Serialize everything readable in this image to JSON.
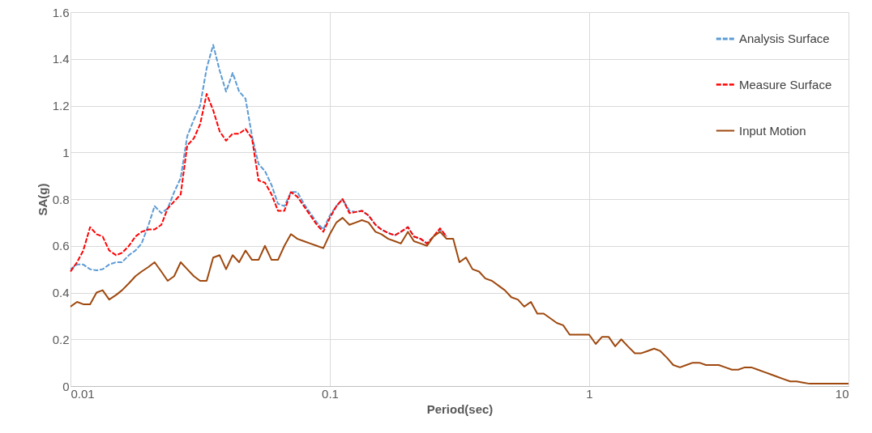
{
  "chart_data": {
    "type": "line",
    "xlabel": "Period(sec)",
    "ylabel": "SA(g)",
    "log": "x",
    "xlim": [
      0.01,
      10
    ],
    "xticks": [
      0.01,
      0.1,
      1,
      10
    ],
    "ylim": [
      0,
      1.6
    ],
    "yticks": [
      0,
      0.2,
      0.4,
      0.6,
      0.8,
      1,
      1.2,
      1.4,
      1.6
    ],
    "grid": true,
    "legend": "top right",
    "marker": "none",
    "x": [
      0.01,
      0.0106,
      0.0112,
      0.0119,
      0.0126,
      0.0133,
      0.0141,
      0.015,
      0.0158,
      0.0168,
      0.0178,
      0.0188,
      0.02,
      0.0211,
      0.0224,
      0.0237,
      0.0251,
      0.0266,
      0.0282,
      0.0299,
      0.0316,
      0.0335,
      0.0355,
      0.0376,
      0.0398,
      0.0422,
      0.0447,
      0.0473,
      0.0501,
      0.0531,
      0.0562,
      0.0596,
      0.0631,
      0.0668,
      0.0708,
      0.075,
      0.0794,
      0.0841,
      0.0891,
      0.0944,
      0.1,
      0.106,
      0.112,
      0.119,
      0.126,
      0.133,
      0.141,
      0.15,
      0.158,
      0.168,
      0.178,
      0.188,
      0.2,
      0.211,
      0.224,
      0.237,
      0.251,
      0.266,
      0.282,
      0.299,
      0.316,
      0.335,
      0.355,
      0.376,
      0.398,
      0.422,
      0.447,
      0.473,
      0.501,
      0.531,
      0.562,
      0.596,
      0.631,
      0.668,
      0.708,
      0.75,
      0.794,
      0.841,
      0.891,
      0.944,
      1,
      1.06,
      1.12,
      1.19,
      1.26,
      1.33,
      1.41,
      1.5,
      1.58,
      1.68,
      1.78,
      1.88,
      2,
      2.11,
      2.24,
      2.37,
      2.51,
      2.66,
      2.82,
      2.99,
      3.16,
      3.35,
      3.55,
      3.76,
      3.98,
      4.22,
      4.47,
      4.73,
      5.01,
      5.31,
      5.62,
      5.96,
      6.31,
      6.68,
      7.08,
      7.5,
      7.94,
      8.41,
      8.91,
      9.44,
      10
    ],
    "series": [
      {
        "name": "Analysis Surface",
        "color": "#5b9bd5",
        "line_style": "dashed",
        "x": [
          0.01,
          0.0106,
          0.0112,
          0.0119,
          0.0126,
          0.0133,
          0.0141,
          0.015,
          0.0158,
          0.0168,
          0.0178,
          0.0188,
          0.02,
          0.0211,
          0.0224,
          0.0237,
          0.0251,
          0.0266,
          0.0282,
          0.0299,
          0.0316,
          0.0335,
          0.0355,
          0.0376,
          0.0398,
          0.0422,
          0.0447,
          0.0473,
          0.0501,
          0.0531,
          0.0562,
          0.0596,
          0.0631,
          0.0668,
          0.0708,
          0.075,
          0.0794,
          0.0841,
          0.0891,
          0.0944,
          0.1,
          0.106,
          0.112,
          0.119,
          0.126,
          0.133,
          0.141,
          0.15,
          0.158,
          0.168,
          0.178,
          0.188,
          0.2,
          0.211,
          0.224,
          0.237,
          0.251,
          0.266,
          0.282
        ],
        "values": [
          0.5,
          0.52,
          0.52,
          0.5,
          0.495,
          0.5,
          0.52,
          0.53,
          0.53,
          0.56,
          0.58,
          0.61,
          0.69,
          0.77,
          0.74,
          0.76,
          0.83,
          0.89,
          1.07,
          1.14,
          1.2,
          1.36,
          1.46,
          1.35,
          1.26,
          1.34,
          1.26,
          1.23,
          1.07,
          0.95,
          0.92,
          0.86,
          0.78,
          0.77,
          0.83,
          0.83,
          0.78,
          0.74,
          0.7,
          0.67,
          0.73,
          0.77,
          0.8,
          0.75,
          0.745,
          0.75,
          0.73,
          0.69,
          0.67,
          0.655,
          0.645,
          0.66,
          0.68,
          0.64,
          0.63,
          0.61,
          0.64,
          0.67,
          0.64
        ]
      },
      {
        "name": "Measure Surface",
        "color": "#ff0000",
        "line_style": "dashed",
        "x": [
          0.01,
          0.0106,
          0.0112,
          0.0119,
          0.0126,
          0.0133,
          0.0141,
          0.015,
          0.0158,
          0.0168,
          0.0178,
          0.0188,
          0.02,
          0.0211,
          0.0224,
          0.0237,
          0.0251,
          0.0266,
          0.0282,
          0.0299,
          0.0316,
          0.0335,
          0.0355,
          0.0376,
          0.0398,
          0.0422,
          0.0447,
          0.0473,
          0.0501,
          0.0531,
          0.0562,
          0.0596,
          0.0631,
          0.0668,
          0.0708,
          0.075,
          0.0794,
          0.0841,
          0.0891,
          0.0944,
          0.1,
          0.106,
          0.112,
          0.119,
          0.126,
          0.133,
          0.141,
          0.15,
          0.158,
          0.168,
          0.178,
          0.188,
          0.2,
          0.211,
          0.224,
          0.237,
          0.251,
          0.266,
          0.282
        ],
        "values": [
          0.49,
          0.53,
          0.58,
          0.68,
          0.65,
          0.64,
          0.58,
          0.56,
          0.57,
          0.6,
          0.64,
          0.66,
          0.67,
          0.67,
          0.69,
          0.76,
          0.79,
          0.82,
          1.03,
          1.06,
          1.12,
          1.25,
          1.18,
          1.09,
          1.05,
          1.08,
          1.08,
          1.1,
          1.06,
          0.88,
          0.87,
          0.82,
          0.75,
          0.75,
          0.83,
          0.81,
          0.77,
          0.73,
          0.69,
          0.66,
          0.72,
          0.77,
          0.8,
          0.74,
          0.745,
          0.75,
          0.73,
          0.69,
          0.67,
          0.655,
          0.645,
          0.66,
          0.68,
          0.64,
          0.63,
          0.61,
          0.64,
          0.675,
          0.64
        ]
      },
      {
        "name": "Input Motion",
        "color": "#9e480e",
        "line_style": "solid",
        "values": [
          0.34,
          0.36,
          0.35,
          0.35,
          0.4,
          0.41,
          0.37,
          0.39,
          0.41,
          0.44,
          0.47,
          0.49,
          0.51,
          0.53,
          0.49,
          0.45,
          0.47,
          0.53,
          0.5,
          0.47,
          0.45,
          0.45,
          0.55,
          0.56,
          0.5,
          0.56,
          0.53,
          0.58,
          0.54,
          0.54,
          0.6,
          0.54,
          0.54,
          0.6,
          0.65,
          0.63,
          0.62,
          0.61,
          0.6,
          0.59,
          0.65,
          0.7,
          0.72,
          0.69,
          0.7,
          0.71,
          0.7,
          0.66,
          0.65,
          0.63,
          0.62,
          0.61,
          0.66,
          0.62,
          0.61,
          0.6,
          0.64,
          0.66,
          0.63,
          0.63,
          0.53,
          0.55,
          0.5,
          0.49,
          0.46,
          0.45,
          0.43,
          0.41,
          0.38,
          0.37,
          0.34,
          0.36,
          0.31,
          0.31,
          0.29,
          0.27,
          0.26,
          0.22,
          0.22,
          0.22,
          0.22,
          0.18,
          0.21,
          0.21,
          0.17,
          0.2,
          0.17,
          0.14,
          0.14,
          0.15,
          0.16,
          0.15,
          0.12,
          0.09,
          0.08,
          0.09,
          0.1,
          0.1,
          0.09,
          0.09,
          0.09,
          0.08,
          0.07,
          0.07,
          0.08,
          0.08,
          0.07,
          0.06,
          0.05,
          0.04,
          0.03,
          0.02,
          0.02,
          0.015,
          0.01,
          0.01,
          0.01,
          0.01,
          0.01,
          0.01,
          0.01
        ]
      }
    ]
  }
}
